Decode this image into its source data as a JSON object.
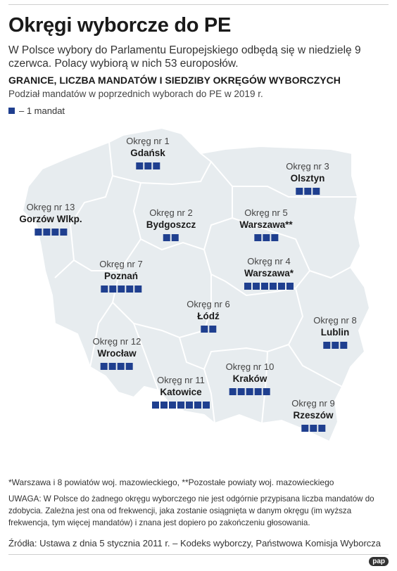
{
  "title": "Okręgi wyborcze do PE",
  "intro": "W Polsce wybory do Parlamentu Europejskiego odbędą się w niedzielę 9 czerwca. Polacy wybiorą w nich 53 europosłów.",
  "subtitle": "GRANICE, LICZBA MANDATÓW I SIEDZIBY OKRĘGÓW WYBORCZYCH",
  "subline": "Podział mandatów w poprzednich wyborach do PE w 2019 r.",
  "legend": {
    "label": "– 1 mandat",
    "color": "#1f3f8f"
  },
  "colors": {
    "map_fill": "#e7ecef",
    "map_border": "#ffffff",
    "seat": "#1f3f8f"
  },
  "districts": [
    {
      "nr": "Okręg nr 1",
      "city": "Gdańsk",
      "seats": 3
    },
    {
      "nr": "Okręg nr 2",
      "city": "Bydgoszcz",
      "seats": 2
    },
    {
      "nr": "Okręg nr 3",
      "city": "Olsztyn",
      "seats": 3
    },
    {
      "nr": "Okręg nr 4",
      "city": "Warszawa*",
      "seats": 6
    },
    {
      "nr": "Okręg nr 5",
      "city": "Warszawa**",
      "seats": 3
    },
    {
      "nr": "Okręg nr 6",
      "city": "Łódź",
      "seats": 2
    },
    {
      "nr": "Okręg nr 7",
      "city": "Poznań",
      "seats": 5
    },
    {
      "nr": "Okręg nr 8",
      "city": "Lublin",
      "seats": 3
    },
    {
      "nr": "Okręg nr 9",
      "city": "Rzeszów",
      "seats": 3
    },
    {
      "nr": "Okręg nr 10",
      "city": "Kraków",
      "seats": 5
    },
    {
      "nr": "Okręg nr 11",
      "city": "Katowice",
      "seats": 7
    },
    {
      "nr": "Okręg nr 12",
      "city": "Wrocław",
      "seats": 4
    },
    {
      "nr": "Okręg nr 13",
      "city": "Gorzów Wlkp.",
      "seats": 4
    }
  ],
  "footnote": "*Warszawa i 8 powiatów woj. mazowieckiego, **Pozostałe powiaty woj. mazowieckiego",
  "note": "UWAGA: W Polsce do żadnego okręgu wyborczego nie jest odgórnie przypisana liczba mandatów do zdobycia. Zależna jest ona od frekwencji, jaka zostanie osiągnięta w danym okręgu (im wyższa frekwencja, tym więcej mandatów) i znana jest dopiero po zakończeniu głosowania.",
  "source": "Źródła: Ustawa z dnia 5 stycznia 2011 r. – Kodeks wyborczy, Państwowa Komisja Wyborcza",
  "logo": "pap"
}
